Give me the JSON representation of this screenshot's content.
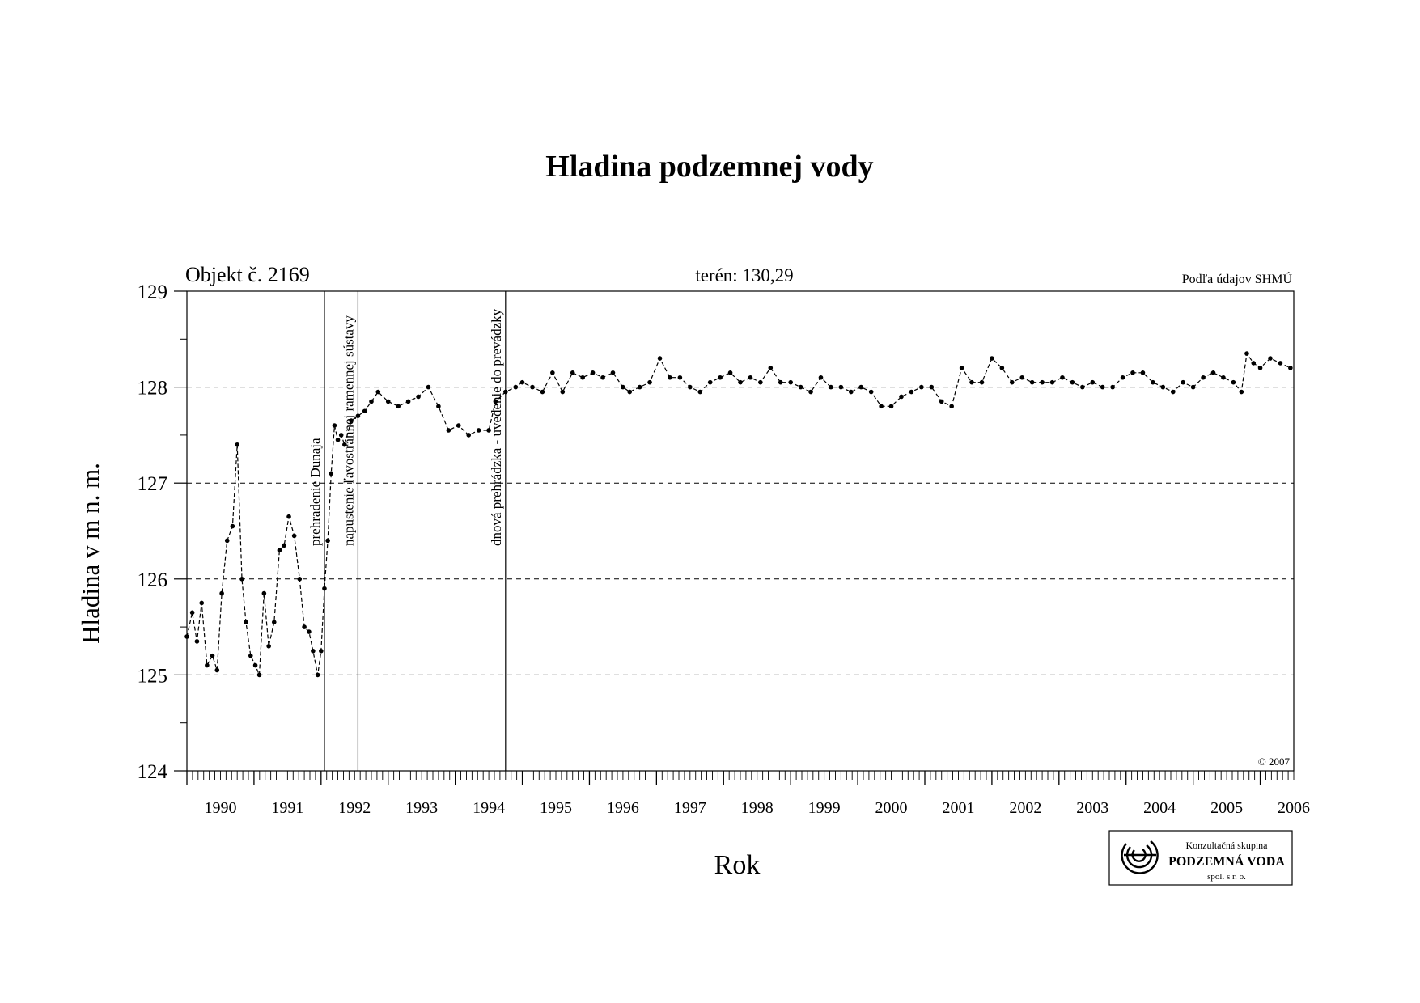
{
  "chart_data": {
    "type": "line",
    "title": "Hladina podzemnej vody",
    "object_label": "Objekt č. 2169",
    "terrain_label": "terén: 130,29",
    "source_label": "Podľa údajov SHMÚ",
    "copyright": "© 2007",
    "xlabel": "Rok",
    "ylabel": "Hladina v m n. m.",
    "xlim": [
      1990.0,
      2006.5
    ],
    "ylim": [
      124,
      129
    ],
    "y_ticks": [
      "124",
      "125",
      "126",
      "127",
      "128",
      "129"
    ],
    "x_tick_labels": [
      "1990",
      "1991",
      "1992",
      "1993",
      "1994",
      "1995",
      "1996",
      "1997",
      "1998",
      "1999",
      "2000",
      "2001",
      "2002",
      "2003",
      "2004",
      "2005",
      "2006"
    ],
    "grid": "horizontal dashed",
    "events": [
      {
        "x": 1992.05,
        "label": "prehradenie Dunaja"
      },
      {
        "x": 1992.55,
        "label": "napustenie ľavostrannej ramennej sústavy"
      },
      {
        "x": 1994.75,
        "label": "dnová prehrádzka - uvedenie do prevádzky"
      }
    ],
    "series": [
      {
        "x": [
          1990.0,
          1990.08,
          1990.15,
          1990.22,
          1990.3,
          1990.38,
          1990.45,
          1990.52,
          1990.6,
          1990.68,
          1990.75,
          1990.82,
          1990.88,
          1990.95,
          1991.02,
          1991.08,
          1991.15,
          1991.22,
          1991.3,
          1991.38,
          1991.45,
          1991.52,
          1991.6,
          1991.68,
          1991.75,
          1991.82,
          1991.88,
          1991.95,
          1992.0,
          1992.05,
          1992.1,
          1992.15,
          1992.2,
          1992.25,
          1992.3,
          1992.35,
          1992.45,
          1992.55,
          1992.65,
          1992.75,
          1992.85,
          1993.0,
          1993.15,
          1993.3,
          1993.45,
          1993.6,
          1993.75,
          1993.9,
          1994.05,
          1994.2,
          1994.35,
          1994.5,
          1994.6,
          1994.75,
          1994.9,
          1995.0,
          1995.15,
          1995.3,
          1995.45,
          1995.6,
          1995.75,
          1995.9,
          1996.05,
          1996.2,
          1996.35,
          1996.5,
          1996.6,
          1996.75,
          1996.9,
          1997.05,
          1997.2,
          1997.35,
          1997.5,
          1997.65,
          1997.8,
          1997.95,
          1998.1,
          1998.25,
          1998.4,
          1998.55,
          1998.7,
          1998.85,
          1999.0,
          1999.15,
          1999.3,
          1999.45,
          1999.6,
          1999.75,
          1999.9,
          2000.05,
          2000.2,
          2000.35,
          2000.5,
          2000.65,
          2000.8,
          2000.95,
          2001.1,
          2001.25,
          2001.4,
          2001.55,
          2001.7,
          2001.85,
          2002.0,
          2002.15,
          2002.3,
          2002.45,
          2002.6,
          2002.75,
          2002.9,
          2003.05,
          2003.2,
          2003.35,
          2003.5,
          2003.65,
          2003.8,
          2003.95,
          2004.1,
          2004.25,
          2004.4,
          2004.55,
          2004.7,
          2004.85,
          2005.0,
          2005.15,
          2005.3,
          2005.45,
          2005.6,
          2005.72,
          2005.8,
          2005.9,
          2006.0,
          2006.15,
          2006.3,
          2006.45
        ],
        "y": [
          125.4,
          125.65,
          125.35,
          125.75,
          125.1,
          125.2,
          125.05,
          125.85,
          126.4,
          126.55,
          127.4,
          126.0,
          125.55,
          125.2,
          125.1,
          125.0,
          125.85,
          125.3,
          125.55,
          126.3,
          126.35,
          126.65,
          126.45,
          126.0,
          125.5,
          125.45,
          125.25,
          125.0,
          125.25,
          125.9,
          126.4,
          127.1,
          127.6,
          127.45,
          127.5,
          127.4,
          127.65,
          127.7,
          127.75,
          127.85,
          127.95,
          127.85,
          127.8,
          127.85,
          127.9,
          128.0,
          127.8,
          127.55,
          127.6,
          127.5,
          127.55,
          127.55,
          127.85,
          127.95,
          128.0,
          128.05,
          128.0,
          127.95,
          128.15,
          127.95,
          128.15,
          128.1,
          128.15,
          128.1,
          128.15,
          128.0,
          127.95,
          128.0,
          128.05,
          128.3,
          128.1,
          128.1,
          128.0,
          127.95,
          128.05,
          128.1,
          128.15,
          128.05,
          128.1,
          128.05,
          128.2,
          128.05,
          128.05,
          128.0,
          127.95,
          128.1,
          128.0,
          128.0,
          127.95,
          128.0,
          127.95,
          127.8,
          127.8,
          127.9,
          127.95,
          128.0,
          128.0,
          127.85,
          127.8,
          128.2,
          128.05,
          128.05,
          128.3,
          128.2,
          128.05,
          128.1,
          128.05,
          128.05,
          128.05,
          128.1,
          128.05,
          128.0,
          128.05,
          128.0,
          128.0,
          128.1,
          128.15,
          128.15,
          128.05,
          128.0,
          127.95,
          128.05,
          128.0,
          128.1,
          128.15,
          128.1,
          128.05,
          127.95,
          128.35,
          128.25,
          128.2,
          128.3,
          128.25,
          128.2
        ]
      }
    ]
  },
  "logo": {
    "line1": "Konzultačná skupina",
    "line2": "PODZEMNÁ VODA",
    "line3": "spol. s r. o."
  }
}
